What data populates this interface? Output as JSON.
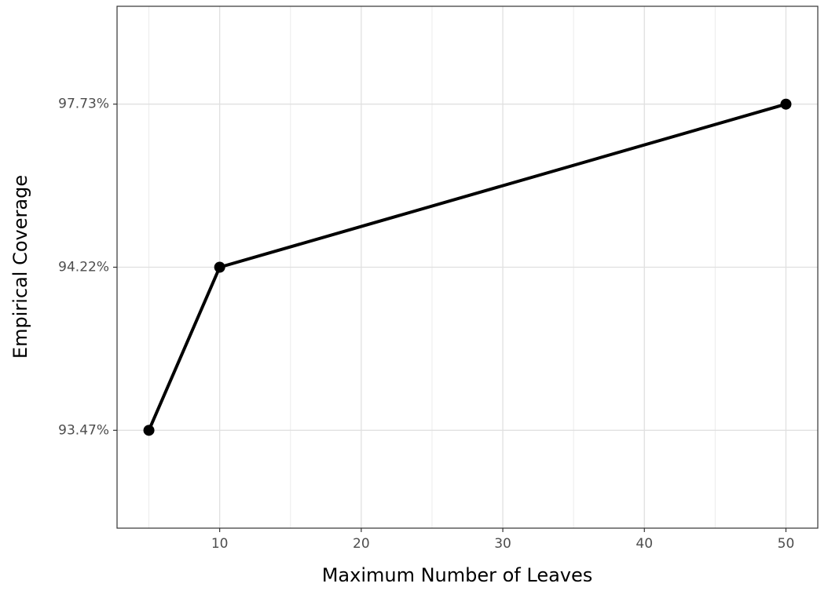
{
  "chart_data": {
    "type": "line",
    "x_label": "Maximum Number of Leaves",
    "y_label": "Empirical Coverage",
    "x": [
      5,
      10,
      50
    ],
    "series": [
      {
        "color": "#000000",
        "values": [
          93.47,
          94.22,
          97.73
        ]
      }
    ],
    "xlim": [
      2.75,
      52.25
    ],
    "xticks": [
      10,
      20,
      30,
      40,
      50
    ],
    "y_discrete": true,
    "yticks": [
      {
        "value": 93.47,
        "label": "93.47%"
      },
      {
        "value": 94.22,
        "label": "94.22%"
      },
      {
        "value": 97.73,
        "label": "97.73%"
      }
    ],
    "grid": true
  }
}
